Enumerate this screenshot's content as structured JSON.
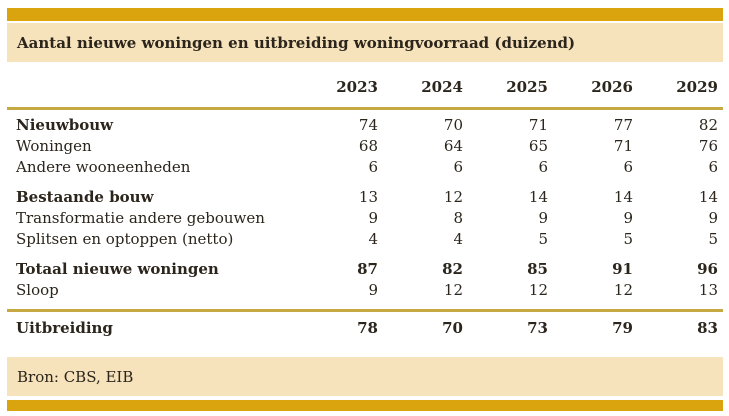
{
  "title": "Aantal nieuwe woningen en uitbreiding woningvoorraad (duizend)",
  "source": "Bron: CBS, EIB",
  "colors": {
    "gold": "#d9a40d",
    "beige": "#f6e2bb",
    "rule": "#c6a943",
    "ink": "#2b251c"
  },
  "chart_data": {
    "type": "table",
    "title": "Aantal nieuwe woningen en uitbreiding woningvoorraad (duizend)",
    "columns": [
      "2023",
      "2024",
      "2025",
      "2026",
      "2029"
    ],
    "rows": [
      {
        "label": "Nieuwbouw",
        "values": [
          74,
          70,
          71,
          77,
          82
        ],
        "label_bold": true,
        "values_bold": false,
        "group_start": false,
        "separator_before": false
      },
      {
        "label": "Woningen",
        "values": [
          68,
          64,
          65,
          71,
          76
        ],
        "label_bold": false,
        "values_bold": false,
        "group_start": false,
        "separator_before": false
      },
      {
        "label": "Andere wooneenheden",
        "values": [
          6,
          6,
          6,
          6,
          6
        ],
        "label_bold": false,
        "values_bold": false,
        "group_start": false,
        "separator_before": false
      },
      {
        "label": "Bestaande bouw",
        "values": [
          13,
          12,
          14,
          14,
          14
        ],
        "label_bold": true,
        "values_bold": false,
        "group_start": true,
        "separator_before": false
      },
      {
        "label": "Transformatie andere gebouwen",
        "values": [
          9,
          8,
          9,
          9,
          9
        ],
        "label_bold": false,
        "values_bold": false,
        "group_start": false,
        "separator_before": false
      },
      {
        "label": "Splitsen en optoppen (netto)",
        "values": [
          4,
          4,
          5,
          5,
          5
        ],
        "label_bold": false,
        "values_bold": false,
        "group_start": false,
        "separator_before": false
      },
      {
        "label": "Totaal nieuwe woningen",
        "values": [
          87,
          82,
          85,
          91,
          96
        ],
        "label_bold": true,
        "values_bold": true,
        "group_start": true,
        "separator_before": false
      },
      {
        "label": "Sloop",
        "values": [
          9,
          12,
          12,
          12,
          13
        ],
        "label_bold": false,
        "values_bold": false,
        "group_start": false,
        "separator_before": false
      },
      {
        "label": "Uitbreiding",
        "values": [
          78,
          70,
          73,
          79,
          83
        ],
        "label_bold": true,
        "values_bold": true,
        "group_start": false,
        "separator_before": true
      }
    ],
    "source": "Bron: CBS, EIB",
    "layout": {
      "grid": false,
      "header_rule": true,
      "total_rule": true
    }
  }
}
